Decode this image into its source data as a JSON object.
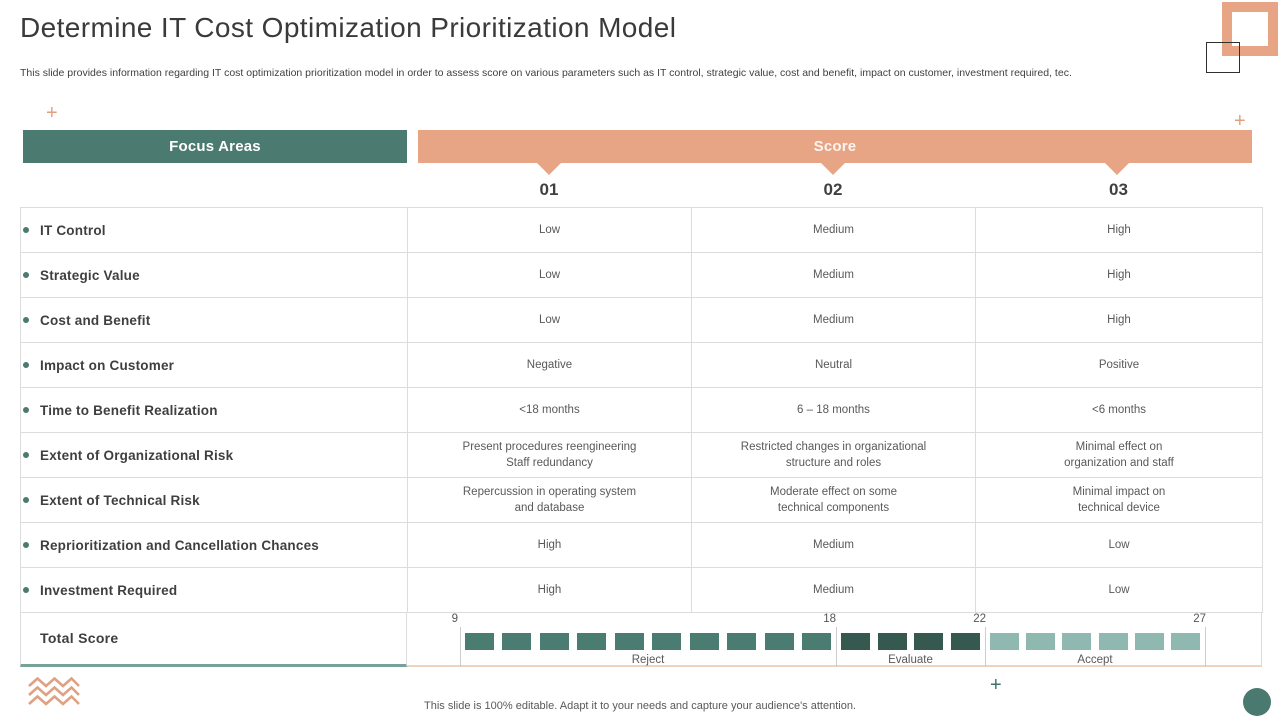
{
  "slide": {
    "title": "Determine IT Cost Optimization Prioritization Model",
    "subtitle": "This slide provides information regarding IT cost optimization prioritization model in order to assess score on various parameters such as IT control, strategic value, cost and benefit, impact on customer, investment required, tec.",
    "footer_note": "This slide is 100% editable. Adapt it to your needs and capture your audience's attention."
  },
  "table": {
    "focus_header": "Focus Areas",
    "score_header": "Score",
    "score_columns": [
      "01",
      "02",
      "03"
    ],
    "rows": [
      {
        "focus": "IT Control",
        "scores": [
          "Low",
          "Medium",
          "High"
        ]
      },
      {
        "focus": "Strategic Value",
        "scores": [
          "Low",
          "Medium",
          "High"
        ]
      },
      {
        "focus": "Cost and Benefit",
        "scores": [
          "Low",
          "Medium",
          "High"
        ]
      },
      {
        "focus": "Impact on Customer",
        "scores": [
          "Negative",
          "Neutral",
          "Positive"
        ]
      },
      {
        "focus": "Time to Benefit Realization",
        "scores": [
          "<18 months",
          "6 – 18 months",
          "<6 months"
        ]
      },
      {
        "focus": "Extent of Organizational Risk",
        "scores": [
          "Present procedures reengineering\nStaff redundancy",
          "Restricted changes in organizational\nstructure and roles",
          "Minimal effect on\norganization and staff"
        ]
      },
      {
        "focus": "Extent of Technical Risk",
        "scores": [
          "Repercussion in operating system\nand database",
          "Moderate effect on some\ntechnical components",
          "Minimal impact on\ntechnical device"
        ]
      },
      {
        "focus": "Reprioritization and Cancellation Chances",
        "scores": [
          "High",
          "Medium",
          "Low"
        ]
      },
      {
        "focus": "Investment Required",
        "scores": [
          "High",
          "Medium",
          "Low"
        ]
      }
    ],
    "total_row": {
      "label": "Total Score",
      "scale": {
        "ticks": [
          "9",
          "18",
          "22",
          "27"
        ],
        "sections": [
          {
            "label": "Reject",
            "squares": 10,
            "color": "#4a7c72"
          },
          {
            "label": "Evaluate",
            "squares": 4,
            "color": "#35584f"
          },
          {
            "label": "Accept",
            "squares": 6,
            "color": "#8fb8b0"
          }
        ]
      }
    }
  },
  "colors": {
    "teal": "#4a7a70",
    "peach": "#e7a585",
    "teal_underline": "#76a29a",
    "peach_underline": "#f0d2be",
    "cell_border": "#dcdcdc",
    "cell_text": "#595959",
    "label_text": "#3f3f3f"
  }
}
